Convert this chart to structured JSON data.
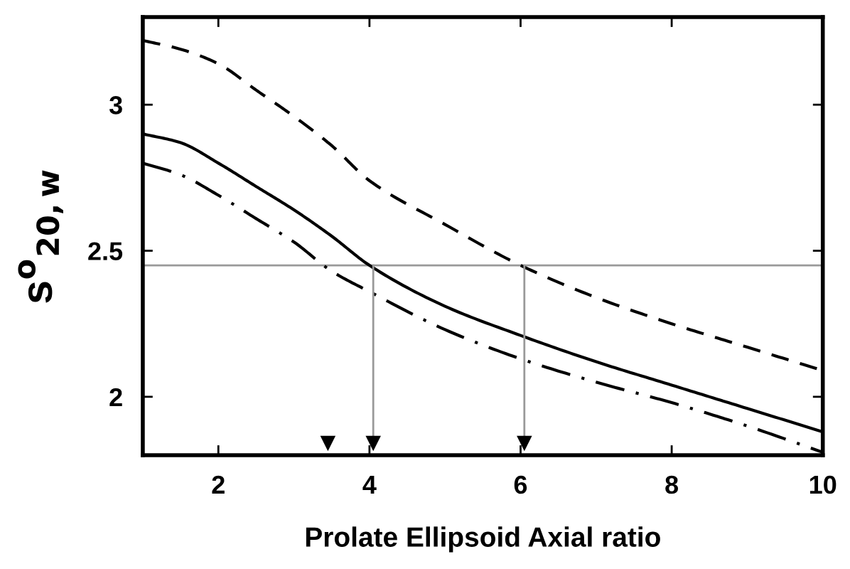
{
  "chart_data": {
    "type": "line",
    "xlabel": "Prolate Ellipsoid Axial ratio",
    "ylabel": "s$^{o}$$_{20,w}$",
    "x": [
      1,
      1.5,
      2,
      2.5,
      3,
      3.5,
      4,
      5,
      6,
      7,
      8,
      9,
      10
    ],
    "series": [
      {
        "color": "#000000",
        "line_style": "dashed",
        "values": [
          3.22,
          3.19,
          3.14,
          3.05,
          2.96,
          2.86,
          2.74,
          2.59,
          2.45,
          2.34,
          2.25,
          2.17,
          2.09
        ]
      },
      {
        "color": "#000000",
        "line_style": "solid",
        "values": [
          2.9,
          2.87,
          2.8,
          2.72,
          2.64,
          2.55,
          2.45,
          2.31,
          2.21,
          2.12,
          2.04,
          1.96,
          1.88
        ]
      },
      {
        "color": "#000000",
        "line_style": "dashdot",
        "values": [
          2.8,
          2.76,
          2.69,
          2.61,
          2.53,
          2.43,
          2.36,
          2.23,
          2.13,
          2.05,
          1.98,
          1.9,
          1.81
        ]
      },
      {
        "type": "line",
        "color": "#999999",
        "line_style": "solid",
        "x": [
          4.05,
          4.05
        ],
        "values": [
          2.45,
          1.85
        ]
      },
      {
        "type": "line",
        "color": "#999999",
        "line_style": "solid",
        "x": [
          6.05,
          6.05
        ],
        "values": [
          2.45,
          1.85
        ]
      },
      {
        "type": "scatter",
        "color": "#000000",
        "marker": "triangle",
        "x": [
          3.45,
          4.05,
          6.05
        ],
        "values": [
          1.84,
          1.84,
          1.84
        ]
      }
    ],
    "ref_lines": [
      {
        "axis": "y",
        "value": 2.45,
        "color": "#999999"
      }
    ],
    "xlim": [
      1,
      10
    ],
    "ylim": [
      1.8,
      3.3
    ],
    "xticks": [
      2,
      4,
      6,
      8,
      10
    ],
    "yticks": [
      2,
      2.5,
      3
    ],
    "grid": false,
    "legend": false
  }
}
